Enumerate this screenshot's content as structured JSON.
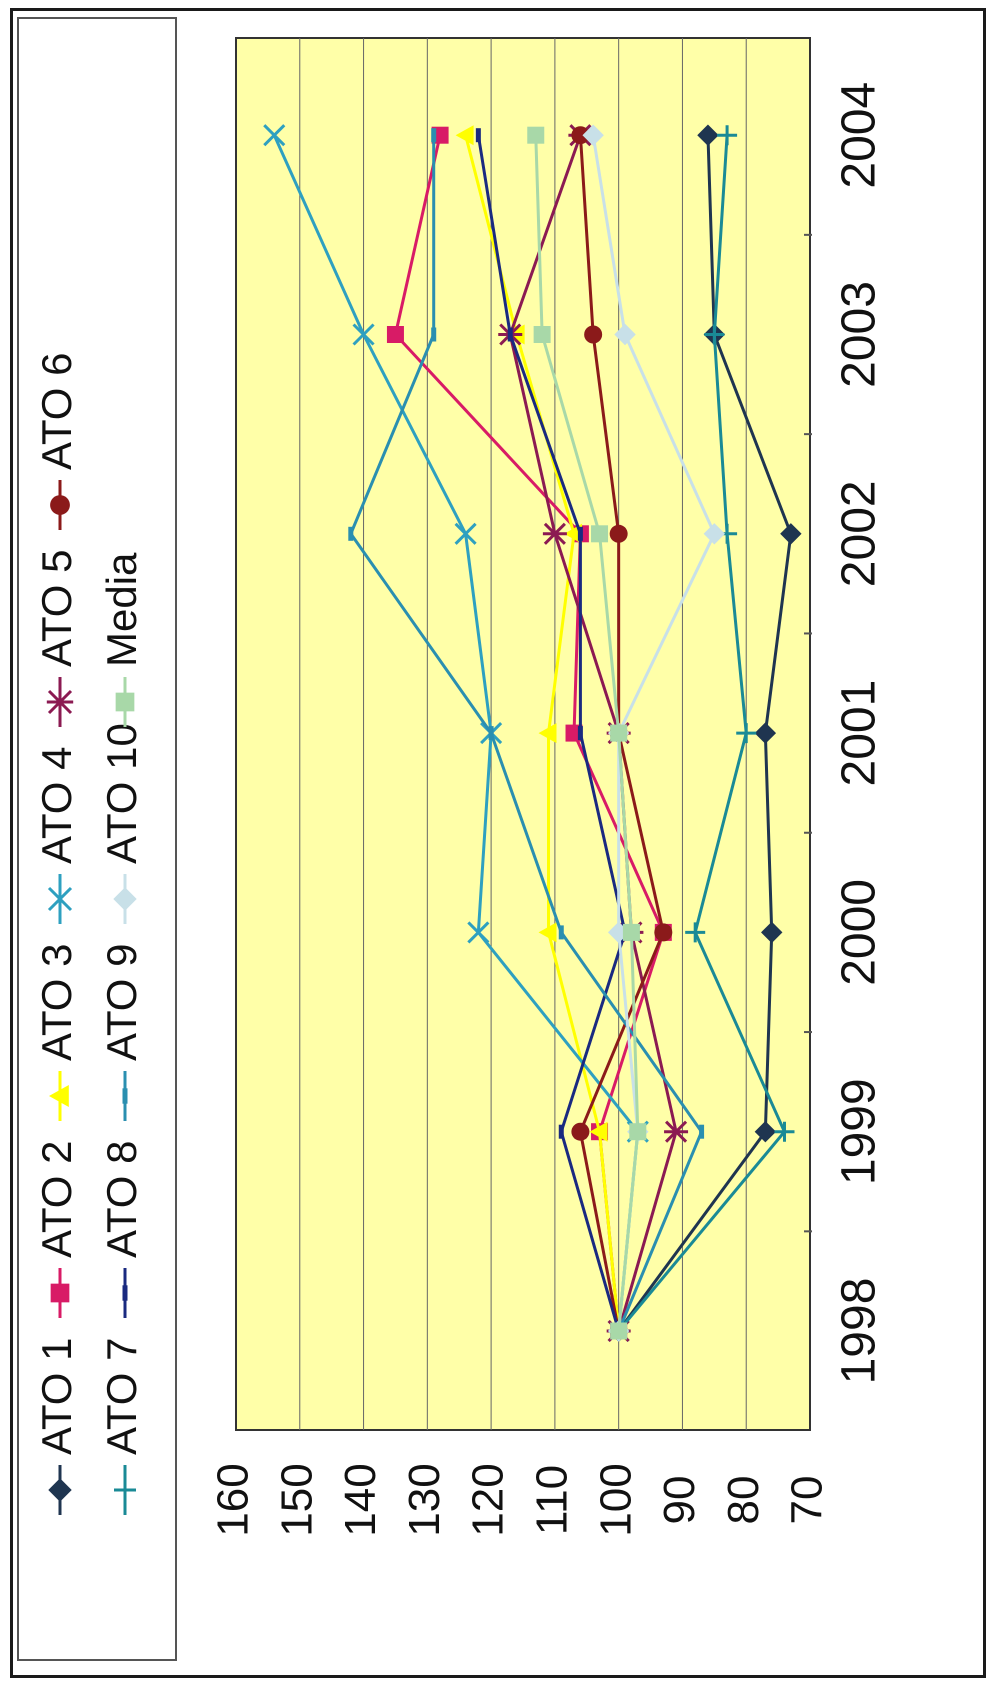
{
  "chart_data": {
    "type": "line",
    "title": "",
    "xlabel": "",
    "ylabel": "",
    "x": [
      "1998",
      "1999",
      "2000",
      "2001",
      "2002",
      "2003",
      "2004"
    ],
    "ylim": [
      70,
      160
    ],
    "yticks": [
      "160",
      "150",
      "140",
      "130",
      "120",
      "110",
      "100",
      "90",
      "80",
      "70"
    ],
    "grid": true,
    "orientation": "rotated 90° clockwise (values increase to the left, years increase downward)",
    "legend_position": "left",
    "colors": {
      "plot_background": "#ffffa8",
      "grid": "#666666",
      "frame": "#1a1a1a"
    },
    "series": [
      {
        "name": "ATO 1",
        "marker": "diamond",
        "color": "#1f3550",
        "values": [
          100,
          77,
          76,
          77,
          73,
          85,
          86
        ]
      },
      {
        "name": "ATO 2",
        "marker": "square",
        "color": "#d81b66",
        "values": [
          100,
          103,
          93,
          107,
          106,
          135,
          128
        ]
      },
      {
        "name": "ATO 3",
        "marker": "triangle",
        "color": "#ffff00",
        "values": [
          100,
          103,
          111,
          111,
          107,
          116,
          124
        ]
      },
      {
        "name": "ATO 4",
        "marker": "x",
        "color": "#2ea0c0",
        "values": [
          100,
          97,
          122,
          120,
          124,
          140,
          154
        ]
      },
      {
        "name": "ATO 5",
        "marker": "asterisk",
        "color": "#8b1a52",
        "values": [
          100,
          91,
          98,
          100,
          110,
          117,
          106
        ]
      },
      {
        "name": "ATO 6",
        "marker": "circle",
        "color": "#8b1a1a",
        "values": [
          100,
          106,
          93,
          100,
          100,
          104,
          106
        ]
      },
      {
        "name": "ATO 7",
        "marker": "plus",
        "color": "#1a8a96",
        "values": [
          100,
          74,
          88,
          80,
          83,
          85,
          83
        ]
      },
      {
        "name": "ATO 8",
        "marker": "dash",
        "color": "#1a2a80",
        "values": [
          100,
          109,
          99,
          106,
          106,
          117,
          122
        ]
      },
      {
        "name": "ATO 9",
        "marker": "dash",
        "color": "#2a8fb0",
        "values": [
          100,
          87,
          109,
          120,
          142,
          129,
          129
        ]
      },
      {
        "name": "ATO 10",
        "marker": "diamond",
        "color": "#c8e0e8",
        "values": [
          100,
          97,
          100,
          100,
          85,
          99,
          104
        ]
      },
      {
        "name": "Media",
        "marker": "square",
        "color": "#a8d8a8",
        "values": [
          100,
          97,
          98,
          100,
          103,
          112,
          113
        ]
      }
    ]
  }
}
